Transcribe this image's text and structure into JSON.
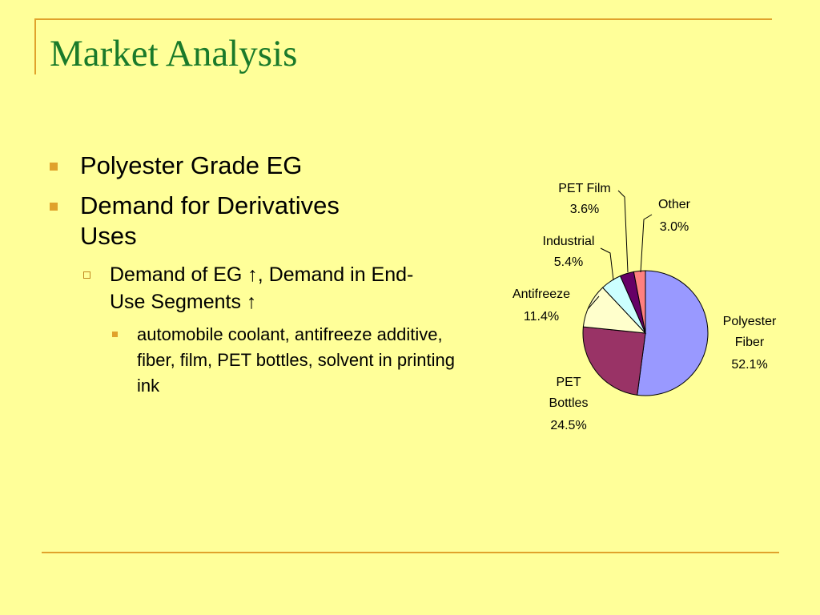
{
  "slide": {
    "title": "Market Analysis",
    "bullets": [
      {
        "text": "Polyester Grade EG"
      },
      {
        "text": "Demand for Derivatives Uses"
      }
    ],
    "sub_bullet": "Demand of EG ↑, Demand in End-Use Segments ↑",
    "sub_sub_bullet": "automobile coolant, antifreeze additive, fiber, film, PET bottles, solvent in printing ink",
    "colors": {
      "title": "#1A7A2A",
      "accent": "#E0A22C",
      "background": "#FFFF99"
    }
  },
  "chart_data": {
    "type": "pie",
    "slices": [
      {
        "label": "Polyester Fiber",
        "value": 52.1,
        "value_text": "52.1%",
        "color": "#9999FF"
      },
      {
        "label": "PET Bottles",
        "value": 24.5,
        "value_text": "24.5%",
        "color": "#993366"
      },
      {
        "label": "Antifreeze",
        "value": 11.4,
        "value_text": "11.4%",
        "color": "#FFFFCC"
      },
      {
        "label": "Industrial",
        "value": 5.4,
        "value_text": "5.4%",
        "color": "#CCFFFF"
      },
      {
        "label": "PET Film",
        "value": 3.6,
        "value_text": "3.6%",
        "color": "#660066"
      },
      {
        "label": "Other",
        "value": 3.0,
        "value_text": "3.0%",
        "color": "#FF8080"
      }
    ]
  }
}
